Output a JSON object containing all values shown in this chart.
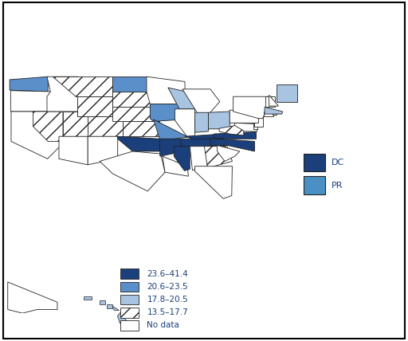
{
  "state_categories": {
    "dark_blue": [
      "MS",
      "KY",
      "VA",
      "AR",
      "NC",
      "TN",
      "OK"
    ],
    "medium_blue": [
      "ND",
      "MO",
      "WA",
      "IA"
    ],
    "light_blue": [
      "WI",
      "OH",
      "IN",
      "ME",
      "MA",
      "HI"
    ],
    "hatched": [
      "MT",
      "WY",
      "KS",
      "NE",
      "CO",
      "UT",
      "NV",
      "WV",
      "GA",
      "SD"
    ],
    "no_data": [
      "ID",
      "OR",
      "CA",
      "AZ",
      "NM",
      "TX",
      "LA",
      "AL",
      "FL",
      "SC",
      "PA",
      "NY",
      "VT",
      "NH",
      "CT",
      "RI",
      "NJ",
      "DE",
      "MD",
      "IL",
      "MI",
      "MN",
      "AK"
    ]
  },
  "dc_color": "#1a3f7a",
  "pr_color": "#4a90c4",
  "dark_blue_color": "#1a3f7a",
  "medium_blue_color": "#5b8fc9",
  "light_blue_color": "#a8c4e0",
  "hatched_facecolor": "#d0d0d0",
  "no_data_color": "#ffffff",
  "border_color": "#222222",
  "legend_labels": [
    "23.6–41.4",
    "20.6–23.5",
    "17.8–20.5",
    "13.5–17.7",
    "No data"
  ],
  "dc_label": "DC",
  "pr_label": "PR",
  "background_color": "#ffffff",
  "text_color": "#1a3f7a",
  "figsize": [
    5.12,
    4.28
  ],
  "dpi": 100
}
